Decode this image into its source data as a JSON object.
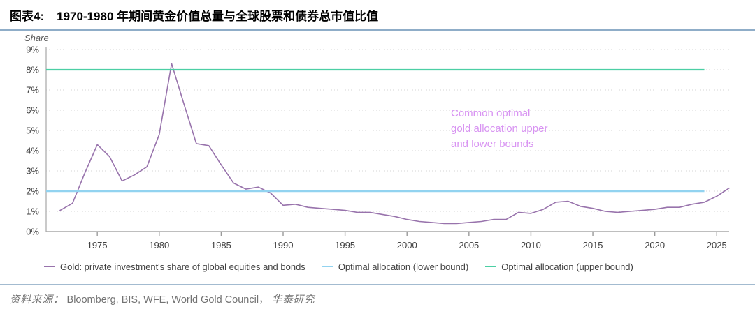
{
  "header": {
    "figure_label": "图表4:",
    "title": "1970-1980 年期间黄金价值总量与全球股票和债券总市值比值"
  },
  "chart": {
    "share_label": "Share",
    "annotation": {
      "line1": "Common optimal",
      "line2": "gold allocation upper",
      "line3": "and lower bounds",
      "color": "#d893f2"
    }
  },
  "chart_data": {
    "type": "line",
    "title": "1970-1980 年期间黄金价值总量与全球股票和债券总市值比值",
    "ylabel": "Share",
    "ylim": [
      0,
      9
    ],
    "y_tick_values": [
      0,
      1,
      2,
      3,
      4,
      5,
      6,
      7,
      8,
      9
    ],
    "y_tick_suffix": "%",
    "x_ticks": [
      1975,
      1980,
      1985,
      1990,
      1995,
      2000,
      2005,
      2010,
      2015,
      2020,
      2025
    ],
    "x_range": [
      1972,
      2026
    ],
    "grid": "horizontal-dotted",
    "legend_position": "bottom",
    "series": [
      {
        "name": "Gold: private investment's share of global equities and bonds",
        "color": "#9873ac",
        "width": 1.6,
        "x": [
          1972,
          1973,
          1974,
          1975,
          1976,
          1977,
          1978,
          1979,
          1980,
          1981,
          1982,
          1983,
          1984,
          1985,
          1986,
          1987,
          1988,
          1989,
          1990,
          1991,
          1992,
          1993,
          1994,
          1995,
          1996,
          1997,
          1998,
          1999,
          2000,
          2001,
          2002,
          2003,
          2004,
          2005,
          2006,
          2007,
          2008,
          2009,
          2010,
          2011,
          2012,
          2013,
          2014,
          2015,
          2016,
          2017,
          2018,
          2019,
          2020,
          2021,
          2022,
          2023,
          2024,
          2025,
          2026
        ],
        "values": [
          1.05,
          1.4,
          2.9,
          4.3,
          3.7,
          2.5,
          2.8,
          3.2,
          4.8,
          8.3,
          6.3,
          4.35,
          4.25,
          3.3,
          2.4,
          2.1,
          2.2,
          1.9,
          1.3,
          1.35,
          1.2,
          1.15,
          1.1,
          1.05,
          0.95,
          0.95,
          0.85,
          0.75,
          0.6,
          0.5,
          0.45,
          0.4,
          0.4,
          0.45,
          0.5,
          0.6,
          0.6,
          0.95,
          0.9,
          1.1,
          1.45,
          1.5,
          1.25,
          1.15,
          1.0,
          0.95,
          1.0,
          1.05,
          1.1,
          1.2,
          1.2,
          1.35,
          1.45,
          1.75,
          2.15
        ]
      },
      {
        "name": "Optimal allocation (lower bound)",
        "color": "#92d3f0",
        "width": 2.4,
        "x": [
          1972,
          2024
        ],
        "values": [
          2,
          2
        ],
        "from_axis_edge": true
      },
      {
        "name": "Optimal allocation (upper bound)",
        "color": "#4ccfa4",
        "width": 2.2,
        "x": [
          1972,
          2024
        ],
        "values": [
          8,
          8
        ],
        "from_axis_edge": true
      }
    ]
  },
  "footer": {
    "source_label": "资料来源：",
    "source_body": "Bloomberg, BIS, WFE, World Gold Council，",
    "source_org": "华泰研究"
  }
}
